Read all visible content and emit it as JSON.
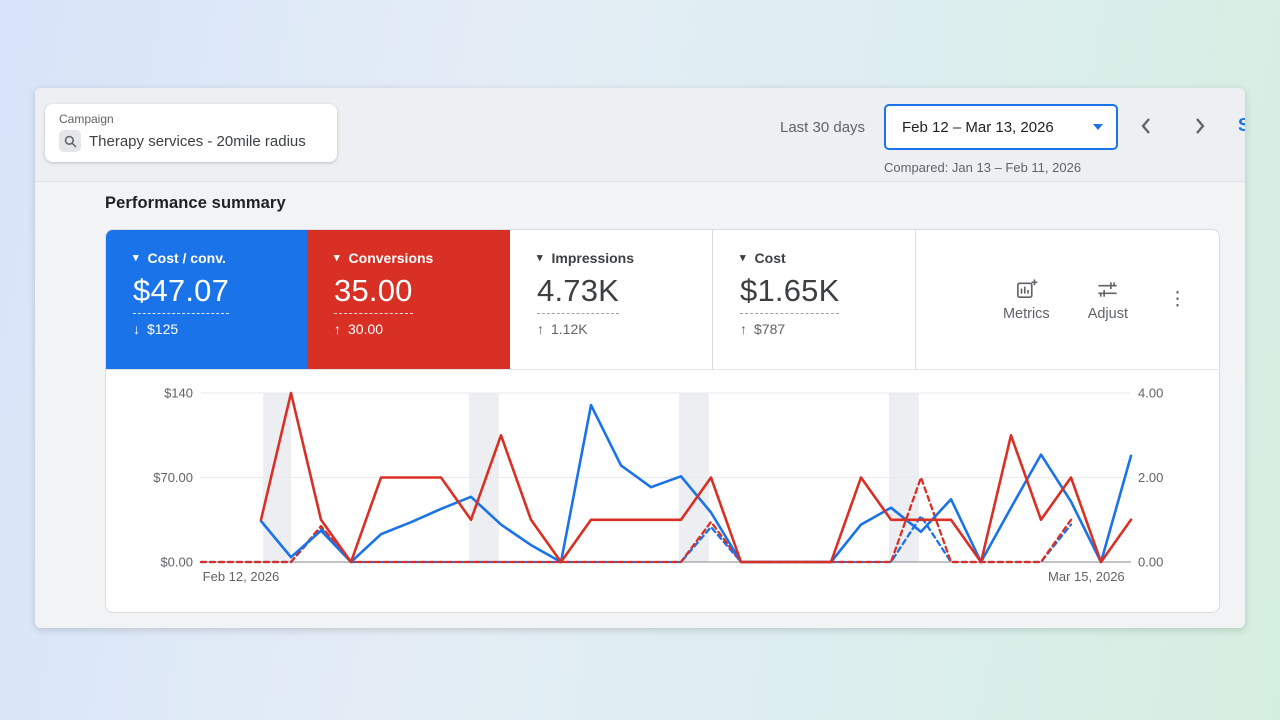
{
  "toolbar": {
    "campaign_label": "Campaign",
    "campaign_name": "Therapy services - 20mile radius",
    "range_preset": "Last 30 days",
    "date_range": "Feb 12 – Mar 13, 2026",
    "compared": "Compared: Jan 13 – Feb 11, 2026",
    "edge_text": "S"
  },
  "section_title": "Performance summary",
  "icons": {
    "caret_down": "▾",
    "kebab": "⋮",
    "arrow_up": "↑",
    "arrow_down": "↓"
  },
  "scorecards": [
    {
      "label": "Cost / conv.",
      "value": "$47.07",
      "delta": "$125",
      "delta_arrow": "↓",
      "bg": "#1a73e8",
      "fg": "#ffffff",
      "delta_color": "#ffffff",
      "underline": "rgba(255,255,255,0.85)",
      "selected": true
    },
    {
      "label": "Conversions",
      "value": "35.00",
      "delta": "30.00",
      "delta_arrow": "↑",
      "bg": "#d93025",
      "fg": "#ffffff",
      "delta_color": "#ffffff",
      "underline": "rgba(255,255,255,0.85)",
      "selected": true
    },
    {
      "label": "Impressions",
      "value": "4.73K",
      "delta": "1.12K",
      "delta_arrow": "↑",
      "bg": "#ffffff",
      "fg": "#3c4043",
      "delta_color": "#5f6368",
      "underline": "#9aa0a6",
      "selected": false
    },
    {
      "label": "Cost",
      "value": "$1.65K",
      "delta": "$787",
      "delta_arrow": "↑",
      "bg": "#ffffff",
      "fg": "#3c4043",
      "delta_color": "#5f6368",
      "underline": "#9aa0a6",
      "selected": false
    }
  ],
  "actions": {
    "metrics": "Metrics",
    "adjust": "Adjust"
  },
  "chart_data": {
    "type": "line",
    "x_days": 31,
    "x_labels": [
      {
        "text": "Feb 12, 2026",
        "pos": 0.043
      },
      {
        "text": "Mar 15, 2026",
        "pos": 0.952
      }
    ],
    "left_axis": {
      "labels": [
        "$140",
        "$70.00",
        "$0.00"
      ],
      "max": 140
    },
    "right_axis": {
      "labels": [
        "4.00",
        "2.00",
        "0.00"
      ],
      "max": 4
    },
    "band_color": "#eceef1",
    "grid_color": "#e8eaed",
    "baseline_color": "#9aa0a6",
    "label_color": "#5f6368",
    "weekend_bands": [
      [
        2.07,
        3.0
      ],
      [
        8.93,
        9.93
      ],
      [
        15.93,
        16.93
      ],
      [
        22.93,
        23.93
      ]
    ],
    "series": [
      {
        "name": "cost-per-conv-previous",
        "color": "#1a73e8",
        "dashed": true,
        "axis": "left",
        "points": [
          [
            0,
            0
          ],
          [
            1,
            0
          ],
          [
            2,
            0
          ],
          [
            3,
            0
          ],
          [
            4,
            28
          ],
          [
            5,
            0
          ],
          [
            6,
            0
          ],
          [
            7,
            0
          ],
          [
            8,
            0
          ],
          [
            9,
            0
          ],
          [
            10,
            0
          ],
          [
            11,
            0
          ],
          [
            12,
            0
          ],
          [
            13,
            0
          ],
          [
            14,
            0
          ],
          [
            15,
            0
          ],
          [
            16,
            0
          ],
          [
            17,
            29
          ],
          [
            18,
            0
          ],
          [
            19,
            0
          ],
          [
            20,
            0
          ],
          [
            21,
            0
          ],
          [
            22,
            0
          ],
          [
            23,
            0
          ],
          [
            24,
            38
          ],
          [
            25,
            0
          ],
          [
            26,
            0
          ],
          [
            27,
            0
          ],
          [
            28,
            0
          ],
          [
            29,
            31
          ]
        ]
      },
      {
        "name": "conversions-previous",
        "color": "#d93025",
        "dashed": true,
        "axis": "right",
        "points": [
          [
            0,
            0
          ],
          [
            1,
            0
          ],
          [
            2,
            0
          ],
          [
            3,
            0
          ],
          [
            4,
            0.85
          ],
          [
            5,
            0
          ],
          [
            6,
            0
          ],
          [
            7,
            0
          ],
          [
            8,
            0
          ],
          [
            9,
            0
          ],
          [
            10,
            0
          ],
          [
            11,
            0
          ],
          [
            12,
            0
          ],
          [
            13,
            0
          ],
          [
            14,
            0
          ],
          [
            15,
            0
          ],
          [
            16,
            0
          ],
          [
            17,
            0.95
          ],
          [
            18,
            0
          ],
          [
            19,
            0
          ],
          [
            20,
            0
          ],
          [
            21,
            0
          ],
          [
            22,
            0
          ],
          [
            23,
            0
          ],
          [
            24,
            2
          ],
          [
            25,
            0
          ],
          [
            26,
            0
          ],
          [
            27,
            0
          ],
          [
            28,
            0
          ],
          [
            29,
            1
          ]
        ]
      },
      {
        "name": "cost-per-conv-current",
        "color": "#1a73e8",
        "dashed": false,
        "axis": "left",
        "points": [
          [
            2,
            34
          ],
          [
            3,
            4
          ],
          [
            4,
            26
          ],
          [
            5,
            0
          ],
          [
            6,
            23
          ],
          [
            7,
            33
          ],
          [
            8,
            44
          ],
          [
            9,
            54
          ],
          [
            10,
            31
          ],
          [
            11,
            14
          ],
          [
            12,
            0
          ],
          [
            13,
            130
          ],
          [
            14,
            80
          ],
          [
            15,
            62
          ],
          [
            16,
            71
          ],
          [
            17,
            41
          ],
          [
            18,
            0
          ],
          [
            19,
            0
          ],
          [
            20,
            0
          ],
          [
            21,
            0
          ],
          [
            22,
            31
          ],
          [
            23,
            45
          ],
          [
            24,
            25
          ],
          [
            25,
            52
          ],
          [
            26,
            0
          ],
          [
            27,
            45
          ],
          [
            28,
            89
          ],
          [
            29,
            50
          ],
          [
            30,
            0
          ],
          [
            31,
            88
          ]
        ]
      },
      {
        "name": "conversions-current",
        "color": "#d93025",
        "dashed": false,
        "axis": "right",
        "points": [
          [
            2,
            1
          ],
          [
            3,
            4
          ],
          [
            4,
            1
          ],
          [
            5,
            0
          ],
          [
            6,
            2
          ],
          [
            7,
            2
          ],
          [
            8,
            2
          ],
          [
            9,
            1
          ],
          [
            10,
            3
          ],
          [
            11,
            1
          ],
          [
            12,
            0
          ],
          [
            13,
            1
          ],
          [
            14,
            1
          ],
          [
            15,
            1
          ],
          [
            16,
            1
          ],
          [
            17,
            2
          ],
          [
            18,
            0
          ],
          [
            19,
            0
          ],
          [
            20,
            0
          ],
          [
            21,
            0
          ],
          [
            22,
            2
          ],
          [
            23,
            1
          ],
          [
            24,
            1
          ],
          [
            25,
            1
          ],
          [
            26,
            0
          ],
          [
            27,
            3
          ],
          [
            28,
            1
          ],
          [
            29,
            2
          ],
          [
            30,
            0
          ],
          [
            31,
            1
          ]
        ]
      }
    ]
  }
}
